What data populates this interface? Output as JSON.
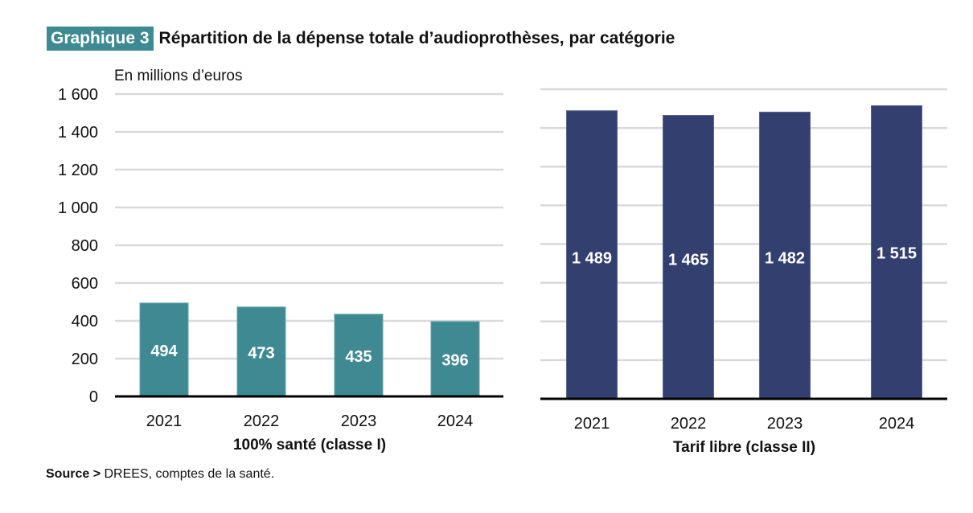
{
  "header": {
    "badge": "Graphique 3",
    "title": "Répartition de la dépense totale d’audioprothèses, par catégorie"
  },
  "unit_label": "En millions d’euros",
  "source": {
    "prefix": "Source >",
    "text": " DREES, comptes de la santé."
  },
  "colors": {
    "teal": "#3f8a92",
    "navy": "#323f6f",
    "grid": "#d9d9d9",
    "axis": "#000000"
  },
  "chart_data": [
    {
      "type": "bar",
      "title": "",
      "xlabel": "100% santé (classe I)",
      "ylabel": "En millions d’euros",
      "categories": [
        "2021",
        "2022",
        "2023",
        "2024"
      ],
      "values": [
        494,
        473,
        435,
        396
      ],
      "data_labels": [
        "494",
        "473",
        "435",
        "396"
      ],
      "ylim": [
        0,
        1600
      ],
      "yticks": [
        0,
        200,
        400,
        600,
        800,
        1000,
        1200,
        1400,
        1600
      ],
      "ytick_labels": [
        "0",
        "200",
        "400",
        "600",
        "800",
        "1 000",
        "1 200",
        "1 400",
        "1 600"
      ],
      "grid": true,
      "color": "#3f8a92"
    },
    {
      "type": "bar",
      "title": "",
      "xlabel": "Tarif libre (classe II)",
      "ylabel": "",
      "categories": [
        "2021",
        "2022",
        "2023",
        "2024"
      ],
      "values": [
        1489,
        1465,
        1482,
        1515
      ],
      "data_labels": [
        "1 489",
        "1 465",
        "1 482",
        "1 515"
      ],
      "ylim": [
        0,
        1600
      ],
      "yticks": [
        0,
        200,
        400,
        600,
        800,
        1000,
        1200,
        1400,
        1600
      ],
      "grid": true,
      "color": "#323f6f"
    }
  ]
}
